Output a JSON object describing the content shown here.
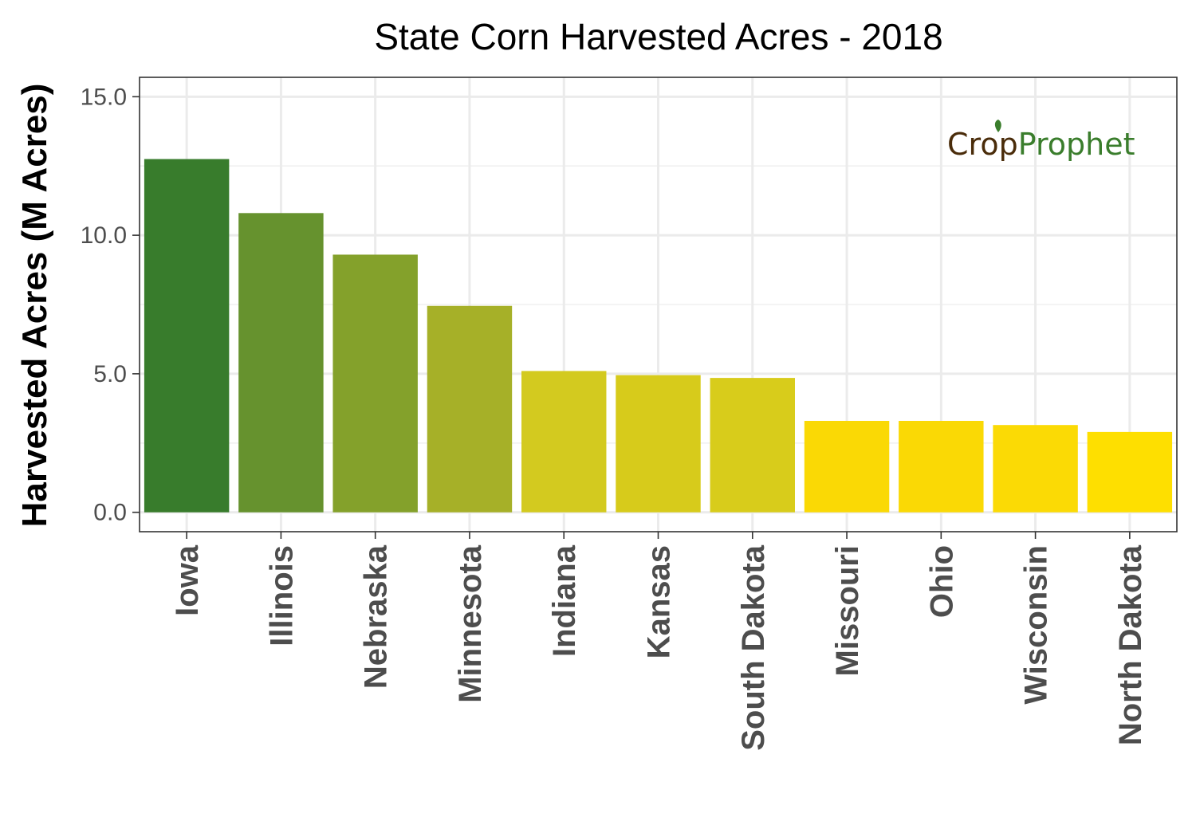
{
  "chart_data": {
    "type": "bar",
    "title": "State Corn Harvested Acres - 2018",
    "xlabel": "",
    "ylabel": "Harvested Acres (M Acres)",
    "ylim": [
      -0.7,
      15.7
    ],
    "yticks": [
      0,
      5,
      10,
      15
    ],
    "ytick_labels": [
      "0.0",
      "5.0",
      "10.0",
      "15.0"
    ],
    "y_minor_gridlines": [
      2.5,
      7.5,
      12.5
    ],
    "grid": true,
    "categories": [
      "Iowa",
      "Illinois",
      "Nebraska",
      "Minnesota",
      "Indiana",
      "Kansas",
      "South Dakota",
      "Missouri",
      "Ohio",
      "Wisconsin",
      "North Dakota"
    ],
    "values": [
      12.75,
      10.8,
      9.3,
      7.45,
      5.1,
      4.95,
      4.85,
      3.3,
      3.3,
      3.15,
      2.9
    ],
    "colors": [
      "#387c2c",
      "#66922e",
      "#84a12b",
      "#a6b028",
      "#d3ca1f",
      "#d7cb1b",
      "#d8cc1b",
      "#fad905",
      "#fad905",
      "#fbda05",
      "#fedf00"
    ]
  },
  "logo": {
    "part1": "Cr",
    "part2": "o",
    "part3": "p",
    "part4": "Prophet",
    "color_dark": "#4a2c0a",
    "color_green": "#3a7d2c"
  }
}
